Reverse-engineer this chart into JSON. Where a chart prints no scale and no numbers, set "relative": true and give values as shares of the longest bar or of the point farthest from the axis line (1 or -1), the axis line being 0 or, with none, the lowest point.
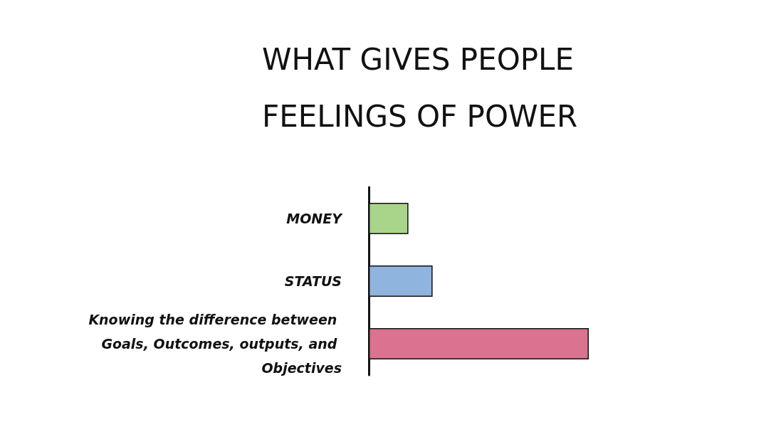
{
  "chart_data": {
    "type": "bar",
    "orientation": "horizontal",
    "relative": true,
    "title": "WHAT GIVES PEOPLE FEELINGS OF POWER",
    "categories": [
      "MONEY",
      "STATUS",
      "Knowing the difference between Goals, Outcomes, outputs, and Objectives"
    ],
    "values": [
      0.18,
      0.29,
      1
    ],
    "colors": [
      "#a8d58a",
      "#8fb5de",
      "#d9738f"
    ]
  }
}
